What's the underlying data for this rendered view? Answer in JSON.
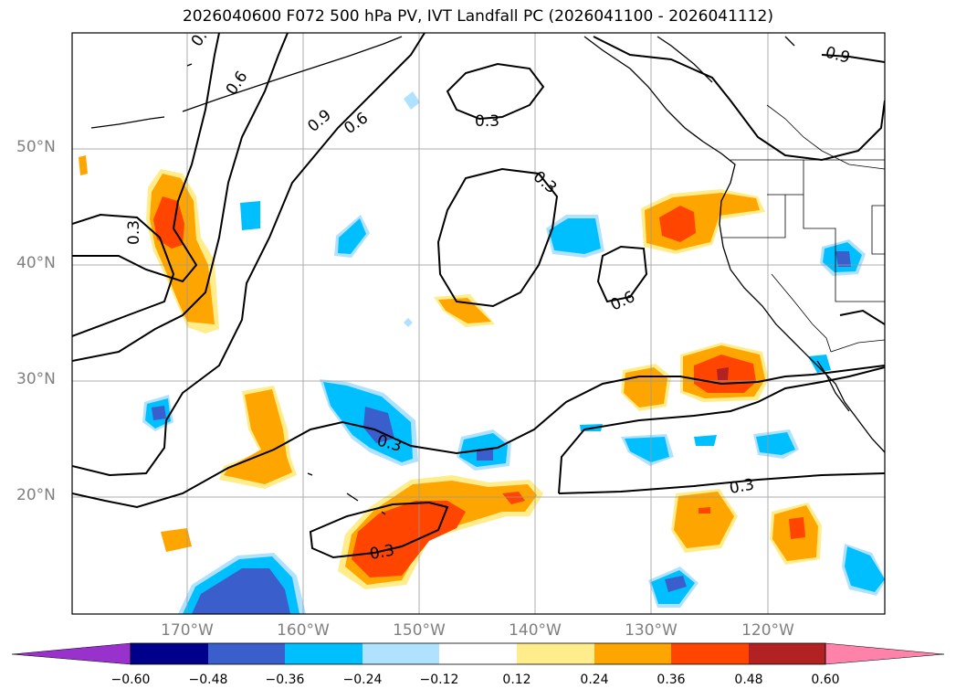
{
  "figure": {
    "title": "2026040600 F072 500 hPa PV, IVT Landfall PC (2026041100 - 2026041112)"
  },
  "axes": {
    "lat_ticks": [
      "50°N",
      "40°N",
      "30°N",
      "20°N"
    ],
    "lon_ticks": [
      "170°W",
      "160°W",
      "150°W",
      "140°W",
      "130°W",
      "120°W"
    ]
  },
  "colorbar": {
    "tick_labels": [
      "−0.60",
      "−0.48",
      "−0.36",
      "−0.24",
      "−0.12",
      "0.12",
      "0.24",
      "0.36",
      "0.48",
      "0.60"
    ],
    "colors": [
      "#9932CC",
      "#00008B",
      "#3A5FCD",
      "#00BFFF",
      "#B0E2FF",
      "#FFFFFF",
      "#FFEC8B",
      "#FFA500",
      "#FF4500",
      "#B22222",
      "#FF82AB"
    ]
  },
  "contour_labels": [
    "0.",
    "0.6",
    "0.9",
    "0.6",
    "0.3",
    "0.3",
    "0.9",
    "0.3",
    "0.6",
    "0.3",
    "0.3",
    "0.3"
  ],
  "colors": {
    "orange": "#FFA500",
    "red_orange": "#FF4500",
    "dark_red": "#B22222",
    "light_yellow": "#FFEC8B",
    "sky_blue": "#00BFFF",
    "light_blue": "#B0E2FF",
    "royal_blue": "#3A5FCD"
  }
}
